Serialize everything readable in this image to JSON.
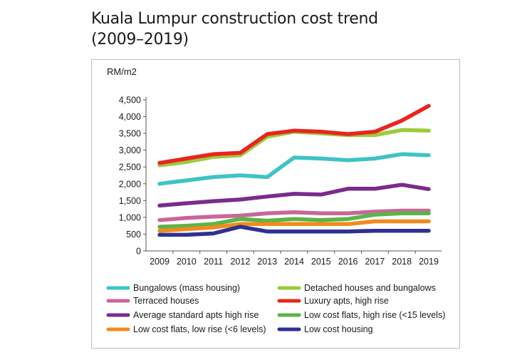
{
  "title_line1": "Kuala Lumpur construction cost trend",
  "title_line2": "(2009–2019)",
  "chart_data": {
    "type": "line",
    "title": "Kuala Lumpur construction cost trend (2009–2019)",
    "ylabel": "RM/m2",
    "xlabel": "",
    "x": [
      "2009",
      "2010",
      "2011",
      "2012",
      "2013",
      "2014",
      "2015",
      "2016",
      "2017",
      "2018",
      "2019"
    ],
    "ylim": [
      0,
      4500
    ],
    "yticks": [
      "0",
      "500",
      "1,000",
      "1,500",
      "2,000",
      "2,500",
      "3,000",
      "3,500",
      "4,000",
      "4,500"
    ],
    "ytick_values": [
      0,
      500,
      1000,
      1500,
      2000,
      2500,
      3000,
      3500,
      4000,
      4500
    ],
    "grid": false,
    "legend_position": "bottom",
    "series": [
      {
        "name": "Bungalows (mass housing)",
        "color": "#3ec3c6",
        "values": [
          2000,
          2100,
          2200,
          2250,
          2200,
          2780,
          2750,
          2700,
          2750,
          2880,
          2850
        ]
      },
      {
        "name": "Detached houses and bungalows",
        "color": "#9ccb3b",
        "values": [
          2550,
          2650,
          2800,
          2850,
          3400,
          3550,
          3500,
          3450,
          3450,
          3600,
          3580
        ]
      },
      {
        "name": "Terraced houses",
        "color": "#c9669a",
        "values": [
          920,
          980,
          1020,
          1050,
          1120,
          1150,
          1120,
          1120,
          1170,
          1200,
          1200
        ]
      },
      {
        "name": "Luxury apts, high rise",
        "color": "#e8251f",
        "values": [
          2620,
          2750,
          2880,
          2920,
          3480,
          3580,
          3550,
          3480,
          3550,
          3880,
          4320
        ]
      },
      {
        "name": "Average standard apts high rise",
        "color": "#7b2b8c",
        "values": [
          1350,
          1420,
          1480,
          1530,
          1620,
          1700,
          1680,
          1850,
          1850,
          1970,
          1840
        ]
      },
      {
        "name": "Low cost flats, high rise (<15 levels)",
        "color": "#5ab548",
        "values": [
          720,
          750,
          800,
          950,
          900,
          950,
          920,
          950,
          1080,
          1120,
          1120
        ]
      },
      {
        "name": "Low cost flats, low rise (<6 levels)",
        "color": "#f28a1d",
        "values": [
          600,
          650,
          700,
          800,
          800,
          800,
          800,
          800,
          880,
          880,
          880
        ]
      },
      {
        "name": "Low cost housing",
        "color": "#2e3192",
        "values": [
          480,
          480,
          520,
          720,
          580,
          580,
          580,
          580,
          600,
          600,
          600
        ]
      }
    ]
  }
}
